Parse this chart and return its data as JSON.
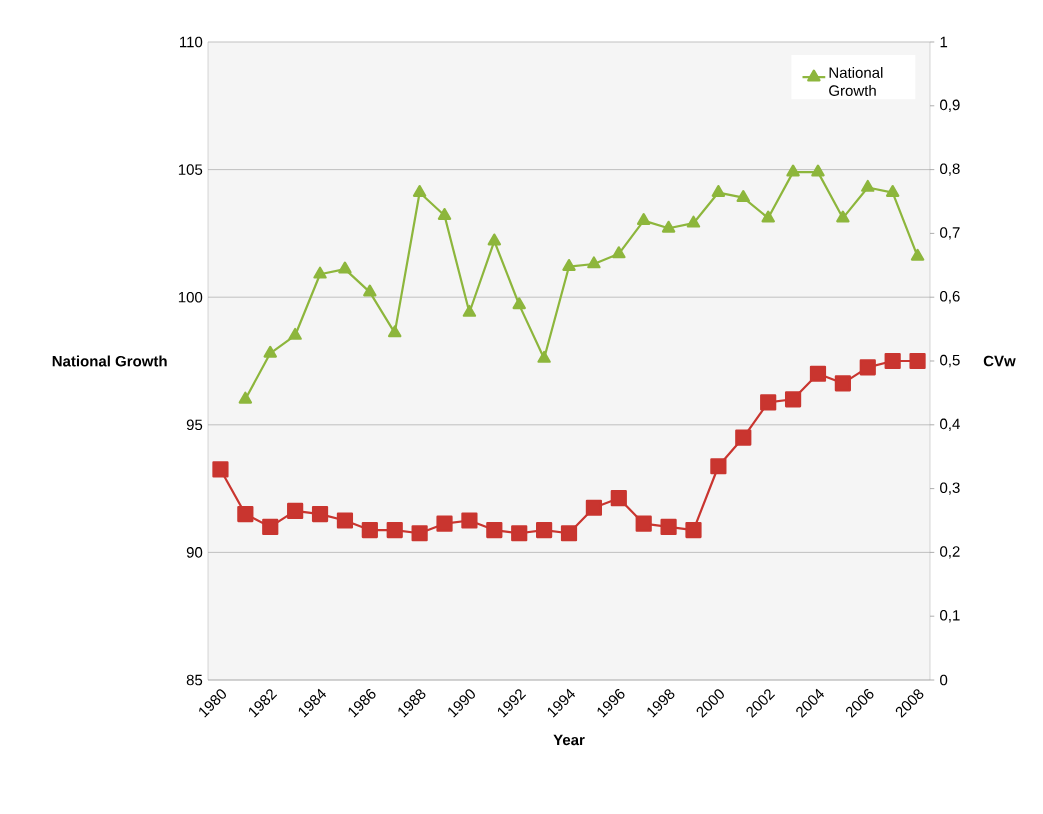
{
  "chart_data": {
    "type": "line",
    "categories": [
      "1980",
      null,
      "1982",
      null,
      "1984",
      null,
      "1986",
      null,
      "1988",
      null,
      "1990",
      null,
      "1992",
      null,
      "1994",
      null,
      "1996",
      null,
      "1998",
      null,
      "2000",
      null,
      "2002",
      null,
      "2004",
      null,
      "2006",
      null,
      "2008"
    ],
    "series": [
      {
        "name": "National Growth",
        "color": "#8db63c",
        "marker": "triangle",
        "values": [
          null,
          96.0,
          97.8,
          98.5,
          100.9,
          101.1,
          100.2,
          98.6,
          104.1,
          103.2,
          99.4,
          102.2,
          99.7,
          97.6,
          101.2,
          101.3,
          101.7,
          103.0,
          102.7,
          102.9,
          104.1,
          103.9,
          103.1,
          104.9,
          104.9,
          103.1,
          104.3,
          104.1,
          101.6
        ]
      },
      {
        "color": "#c9352f",
        "marker": "square",
        "axis": "y2",
        "values": [
          0.33,
          0.26,
          0.24,
          0.265,
          0.26,
          0.25,
          0.235,
          0.235,
          0.23,
          0.245,
          0.25,
          0.235,
          0.23,
          0.235,
          0.23,
          0.27,
          0.285,
          0.245,
          0.24,
          0.235,
          0.335,
          0.38,
          0.435,
          0.44,
          0.48,
          0.465,
          0.49,
          0.5,
          0.5
        ]
      }
    ],
    "xlabel": "Year",
    "ylabel": "National Growth",
    "y2label": "CVw",
    "ylim": [
      85,
      110
    ],
    "yticks": [
      85,
      90,
      95,
      100,
      105,
      110
    ],
    "y2lim": [
      0,
      1
    ],
    "y2ticks": [
      0,
      {
        "value": 0.1,
        "label": "0,1"
      },
      {
        "value": 0.2,
        "label": "0,2"
      },
      {
        "value": 0.3,
        "label": "0,3"
      },
      {
        "value": 0.4,
        "label": "0,4"
      },
      {
        "value": 0.5,
        "label": "0,5"
      },
      {
        "value": 0.6,
        "label": "0,6"
      },
      {
        "value": 0.7,
        "label": "0,7"
      },
      {
        "value": 0.8,
        "label": "0,8"
      },
      {
        "value": 0.9,
        "label": "0,9"
      },
      1
    ],
    "grid": "y",
    "legend": "top right",
    "line_style": "solid"
  }
}
